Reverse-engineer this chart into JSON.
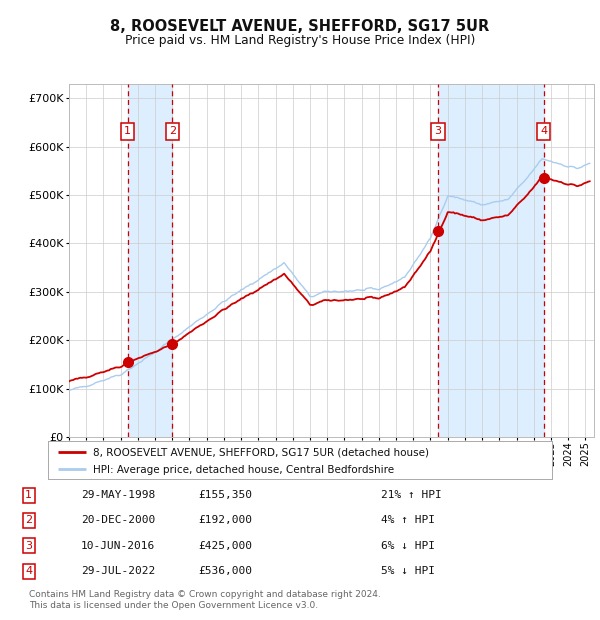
{
  "title_line1": "8, ROOSEVELT AVENUE, SHEFFORD, SG17 5UR",
  "title_line2": "Price paid vs. HM Land Registry's House Price Index (HPI)",
  "ytick_values": [
    0,
    100000,
    200000,
    300000,
    400000,
    500000,
    600000,
    700000
  ],
  "ylim": [
    0,
    730000
  ],
  "xlim_start": 1995.0,
  "xlim_end": 2025.5,
  "sales": [
    {
      "num": 1,
      "date": "29-MAY-1998",
      "year": 1998.41,
      "price": 155350,
      "pct": "21%",
      "dir": "↑"
    },
    {
      "num": 2,
      "date": "20-DEC-2000",
      "year": 2001.0,
      "price": 192000,
      "pct": "4%",
      "dir": "↑"
    },
    {
      "num": 3,
      "date": "10-JUN-2016",
      "year": 2016.44,
      "price": 425000,
      "pct": "6%",
      "dir": "↓"
    },
    {
      "num": 4,
      "date": "29-JUL-2022",
      "year": 2022.58,
      "price": 536000,
      "pct": "5%",
      "dir": "↓"
    }
  ],
  "legend_line1": "8, ROOSEVELT AVENUE, SHEFFORD, SG17 5UR (detached house)",
  "legend_line2": "HPI: Average price, detached house, Central Bedfordshire",
  "footer_line1": "Contains HM Land Registry data © Crown copyright and database right 2024.",
  "footer_line2": "This data is licensed under the Open Government Licence v3.0.",
  "line_color_red": "#cc0000",
  "line_color_blue": "#aaccee",
  "dot_color": "#cc0000",
  "vline_color": "#cc0000",
  "shade_color": "#ddeeff",
  "box_color": "#cc0000",
  "background_color": "#ffffff",
  "grid_color": "#cccccc"
}
